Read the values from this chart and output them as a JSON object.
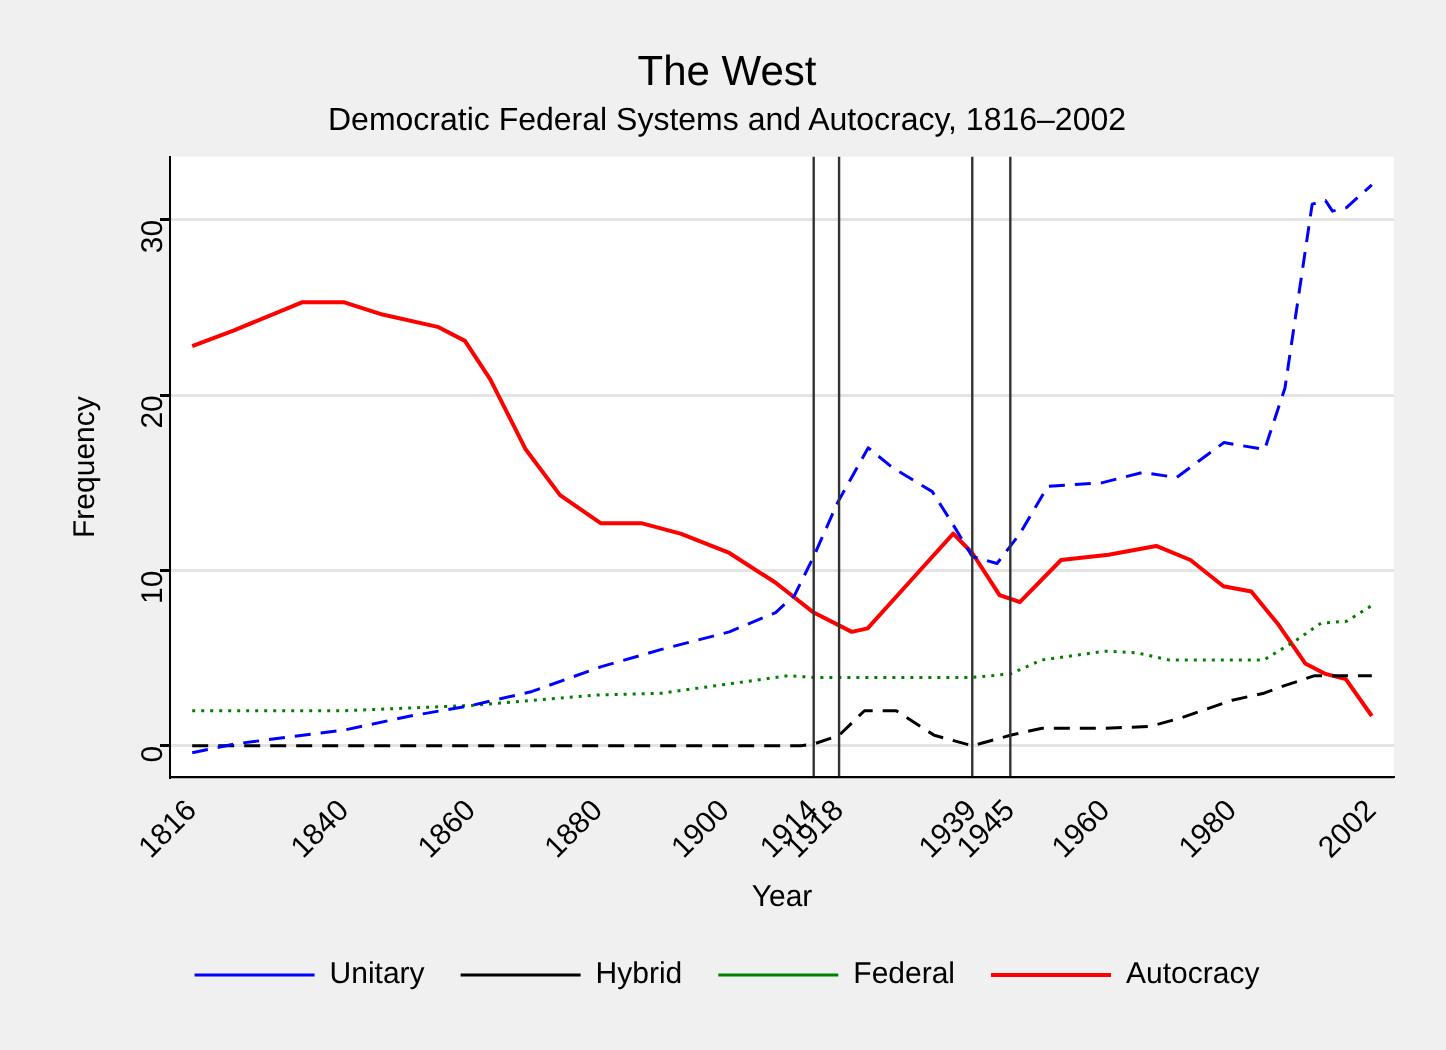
{
  "chart_data": {
    "type": "line",
    "title": "The West",
    "subtitle": "Democratic Federal Systems and Autocracy, 1816–2002",
    "xlabel": "Year",
    "ylabel": "Frequency",
    "xlim": [
      1812.5,
      2005.5
    ],
    "ylim": [
      -1.8,
      33.6
    ],
    "xticks": [
      1816,
      1840,
      1860,
      1880,
      1900,
      1914,
      1918,
      1939,
      1945,
      1960,
      1980,
      2002
    ],
    "yticks": [
      0,
      10,
      20,
      30
    ],
    "grid": "y",
    "legend": "bottom",
    "marker": "none",
    "ref_lines": [
      {
        "axis": "x",
        "value": 1914,
        "color": "#333333"
      },
      {
        "axis": "x",
        "value": 1918,
        "color": "#333333"
      },
      {
        "axis": "x",
        "value": 1939,
        "color": "#333333"
      },
      {
        "axis": "x",
        "value": 1945,
        "color": "#333333"
      }
    ],
    "series": [
      {
        "name": "Unitary",
        "color": "#0000ff",
        "line_style": "dashed",
        "x": [
          1816,
          1822.6,
          1840,
          1850.4,
          1860,
          1869.6,
          1880.4,
          1890,
          1900.7,
          1908,
          1911,
          1914,
          1917.8,
          1922.6,
          1926.3,
          1932.7,
          1936,
          1939,
          1942.9,
          1946.5,
          1950.9,
          1959.4,
          1965.9,
          1971.2,
          1978.7,
          1985.1,
          1988.3,
          1992.6,
          1994.7,
          1995.8,
          1998,
          2002
        ],
        "values": [
          -0.4,
          0.1,
          0.9,
          1.7,
          2.3,
          3.1,
          4.5,
          5.5,
          6.5,
          7.6,
          8.6,
          10.8,
          13.9,
          17.0,
          15.9,
          14.5,
          12.6,
          10.8,
          10.4,
          12.1,
          14.8,
          15.0,
          15.6,
          15.3,
          17.3,
          16.9,
          20.4,
          30.9,
          31.1,
          30.5,
          30.7,
          32.0
        ]
      },
      {
        "name": "Hybrid",
        "color": "#000000",
        "line_style": "dashed",
        "x": [
          1816,
          1900,
          1912,
          1914,
          1918,
          1922,
          1927,
          1933,
          1939,
          1945,
          1950,
          1960,
          1967,
          1972,
          1980,
          1985,
          1988,
          1993,
          2002
        ],
        "values": [
          0,
          0,
          0,
          0.1,
          0.6,
          2.0,
          2.0,
          0.6,
          0,
          0.6,
          1.0,
          1.0,
          1.1,
          1.6,
          2.6,
          3.0,
          3.4,
          4.0,
          4.0
        ]
      },
      {
        "name": "Federal",
        "color": "#008000",
        "line_style": "dotted",
        "x": [
          1816,
          1840,
          1860,
          1880,
          1890,
          1900,
          1910,
          1914,
          1939,
          1945,
          1950,
          1960,
          1965,
          1970,
          1985,
          1990,
          1994,
          1998,
          2002
        ],
        "values": [
          2.0,
          2.0,
          2.3,
          2.9,
          3.0,
          3.5,
          4.0,
          3.9,
          3.9,
          4.1,
          4.9,
          5.4,
          5.3,
          4.9,
          4.9,
          6.0,
          7.0,
          7.1,
          8.0
        ]
      },
      {
        "name": "Autocracy",
        "color": "#ff0000",
        "line_style": "solid",
        "x": [
          1816,
          1822.6,
          1833.3,
          1840,
          1846,
          1854.7,
          1859,
          1863,
          1868.6,
          1874,
          1880.4,
          1886.8,
          1893,
          1900.7,
          1908,
          1914,
          1920,
          1922.5,
          1929.5,
          1936,
          1939,
          1943.3,
          1946.5,
          1953,
          1960.5,
          1968,
          1973.4,
          1978.6,
          1983,
          1987.3,
          1991.5,
          1994.7,
          1997.9,
          2002
        ],
        "values": [
          22.8,
          23.7,
          25.3,
          25.3,
          24.6,
          23.9,
          23.1,
          20.9,
          16.9,
          14.3,
          12.7,
          12.7,
          12.1,
          11.0,
          9.3,
          7.6,
          6.5,
          6.7,
          9.5,
          12.1,
          11.0,
          8.6,
          8.2,
          10.6,
          10.9,
          11.4,
          10.6,
          9.1,
          8.8,
          6.9,
          4.7,
          4.1,
          3.8,
          1.7
        ]
      }
    ]
  }
}
